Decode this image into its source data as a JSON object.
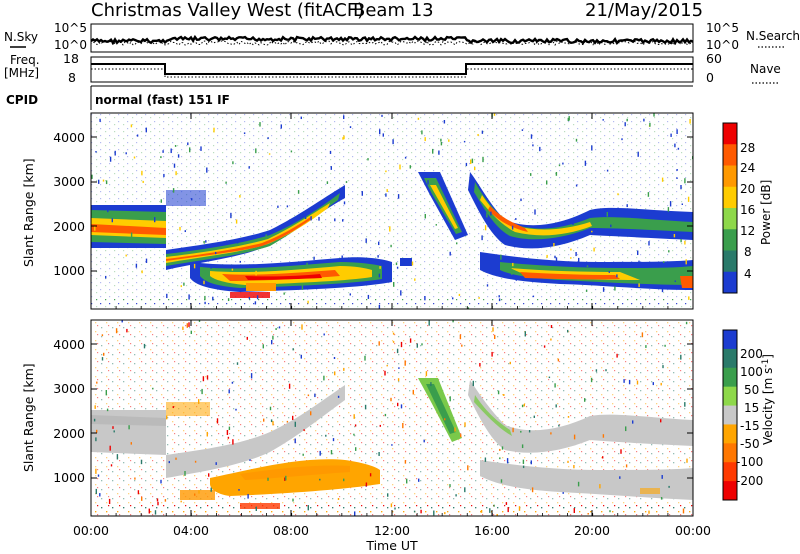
{
  "header": {
    "station": "Christmas Valley West (fitACF)",
    "beam": "Beam 13",
    "date": "21/May/2015"
  },
  "top_panels": {
    "nsky_label": "N.Sky",
    "nsky_ticks": [
      "10^5",
      "10^0"
    ],
    "nsearch_label": "N.Search",
    "nsearch_ticks": [
      "10^5",
      "10^0"
    ],
    "freq_label": "Freq.",
    "freq_unit": "[MHz]",
    "freq_ticks": [
      "18",
      "8"
    ],
    "nave_label": "Nave",
    "nave_ticks": [
      "60",
      "0"
    ],
    "cpid_label": "CPID",
    "cpid_value": "normal (fast) 151 IF"
  },
  "chart_data": [
    {
      "type": "heatmap",
      "panel": "power",
      "ylabel": "Slant Range [km]",
      "yticks": [
        "4000",
        "3000",
        "2000",
        "1000"
      ],
      "ylim": [
        180,
        4560
      ],
      "xlim": [
        0,
        24
      ],
      "xticks": [
        "00:00",
        "04:00",
        "08:00",
        "12:00",
        "16:00",
        "20:00",
        "00:00"
      ],
      "colorbar": {
        "label": "Power [dB]",
        "ticks": [
          "28",
          "24",
          "20",
          "16",
          "12",
          "8",
          "4"
        ],
        "range": [
          0,
          32
        ],
        "colors": [
          "#ee0000",
          "#ff5a00",
          "#ff9900",
          "#ffcc00",
          "#8ed84a",
          "#3a9e4c",
          "#2a7a6a",
          "#1c3cd0"
        ]
      },
      "echo_bands": [
        {
          "t": [
            0,
            3.0
          ],
          "range": [
            1750,
            2350
          ],
          "peak_db": 24
        },
        {
          "t": [
            3.0,
            10.0
          ],
          "range": [
            1000,
            2800
          ],
          "peak_db": 26
        },
        {
          "t": [
            3.0,
            11.0
          ],
          "range": [
            700,
            1400
          ],
          "peak_db": 28
        },
        {
          "t": [
            14.0,
            16.0
          ],
          "range": [
            1800,
            3200
          ],
          "peak_db": 20
        },
        {
          "t": [
            15.5,
            24.0
          ],
          "range": [
            1700,
            3100
          ],
          "peak_db": 26
        },
        {
          "t": [
            16.0,
            23.5
          ],
          "range": [
            600,
            1300
          ],
          "peak_db": 28
        }
      ]
    },
    {
      "type": "heatmap",
      "panel": "velocity",
      "ylabel": "Slant Range [km]",
      "yticks": [
        "4000",
        "3000",
        "2000",
        "1000"
      ],
      "ylim": [
        180,
        4560
      ],
      "xlim": [
        0,
        24
      ],
      "xlabel": "Time UT",
      "xticks": [
        "00:00",
        "04:00",
        "08:00",
        "12:00",
        "16:00",
        "20:00",
        "00:00"
      ],
      "colorbar": {
        "label": "Velocity [m s",
        "label_sup": "-1",
        "label_end": "]",
        "ticks": [
          "200",
          "100",
          "50",
          "15",
          "-15",
          "-50",
          "-100",
          "-200"
        ],
        "colors": [
          "#1c3cd0",
          "#2a7a6a",
          "#3a9e4c",
          "#8ed84a",
          "#c8c8c8",
          "#ffa500",
          "#ff7700",
          "#ff3a00",
          "#ee0000"
        ]
      }
    }
  ]
}
